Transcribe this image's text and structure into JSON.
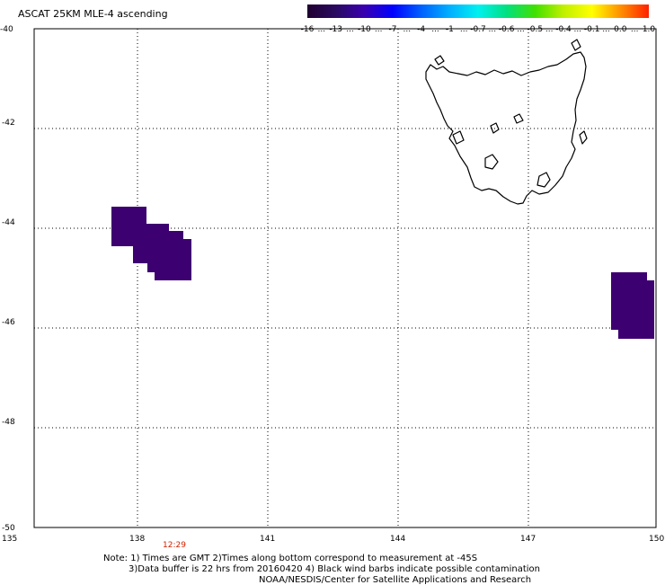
{
  "title": "ASCAT 25KM MLE-4 ascending",
  "colorbar": {
    "labels": [
      "-16",
      "-13",
      "-10",
      "-7",
      "-4",
      "-1",
      "-0.7",
      "-0.6",
      "-0.5",
      "-0.4",
      "-0.1",
      "0.0",
      "1.0"
    ],
    "colors": [
      "#200030",
      "#2a0a60",
      "#3a00b0",
      "#0000ff",
      "#0060ff",
      "#00b0ff",
      "#00f0f0",
      "#00e080",
      "#40e000",
      "#c0f000",
      "#ffff00",
      "#ff9000",
      "#ff2000"
    ]
  },
  "axes": {
    "lon_ticks": [
      "135",
      "138",
      "141",
      "144",
      "147",
      "150"
    ],
    "lat_ticks": [
      "-40",
      "-42",
      "-44",
      "-46",
      "-48",
      "-50"
    ],
    "lon_range": [
      135,
      150
    ],
    "lat_range": [
      -50,
      -40
    ],
    "grid": "dotted"
  },
  "time_label": {
    "text": "12:29",
    "color": "#d02000"
  },
  "swath_color": "#3d0070",
  "coastline_color": "#000000",
  "notes": [
    "Note: 1) Times are GMT 2)Times along bottom correspond to measurement at -45S",
    "3)Data buffer is 22 hrs from 20160420 4) Black wind barbs indicate possible contamination",
    "NOAA/NESDIS/Center for Satellite Applications and Research"
  ]
}
